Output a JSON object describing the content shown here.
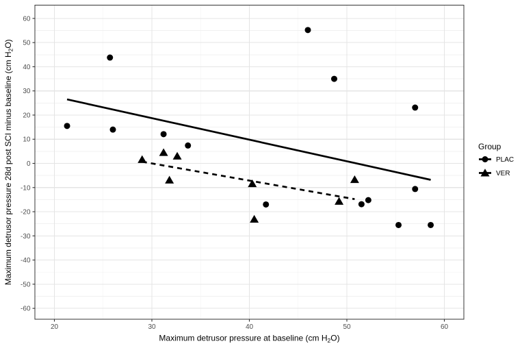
{
  "chart_data": {
    "type": "scatter",
    "title": "",
    "xlabel": "Maximum detrusor pressure at baseline (cm H2O)",
    "ylabel": "Maximum detrusor pressure 28d post SCI minus baseline (cm H2O)",
    "xlabel_parts": [
      "Maximum detrusor pressure at baseline (cm H",
      "2",
      "O)"
    ],
    "ylabel_parts": [
      "Maximum detrusor pressure 28d post SCI minus baseline (cm H",
      "2",
      "O)"
    ],
    "xlim": [
      18,
      62
    ],
    "ylim": [
      -64.5,
      65.5
    ],
    "x_ticks": [
      20,
      30,
      40,
      50,
      60
    ],
    "y_ticks": [
      60,
      50,
      40,
      30,
      20,
      10,
      0,
      -10,
      -20,
      -30,
      -40,
      -50,
      -60
    ],
    "grid": {
      "major": true,
      "minor": true,
      "minor_step": 5
    },
    "legend": {
      "title": "Group",
      "position": "right",
      "entries": [
        {
          "label": "PLAC",
          "marker": "circle"
        },
        {
          "label": "VER",
          "marker": "triangle"
        }
      ]
    },
    "series": [
      {
        "name": "PLAC",
        "marker": "circle",
        "points": [
          [
            21.3,
            15.5
          ],
          [
            25.7,
            43.8
          ],
          [
            26.0,
            14.0
          ],
          [
            31.2,
            12.1
          ],
          [
            33.7,
            7.4
          ],
          [
            41.7,
            -17.0
          ],
          [
            46.0,
            55.2
          ],
          [
            48.7,
            35.0
          ],
          [
            51.5,
            -16.9
          ],
          [
            52.2,
            -15.2
          ],
          [
            55.3,
            -25.5
          ],
          [
            57.0,
            23.1
          ],
          [
            57.0,
            -10.6
          ],
          [
            58.6,
            -25.5
          ]
        ],
        "trend": {
          "line_style": "solid",
          "from": [
            21.3,
            26.5
          ],
          "to": [
            58.6,
            -6.8
          ]
        }
      },
      {
        "name": "VER",
        "marker": "triangle",
        "points": [
          [
            29.0,
            1.6
          ],
          [
            31.2,
            4.5
          ],
          [
            32.6,
            3.0
          ],
          [
            31.8,
            -6.9
          ],
          [
            40.3,
            -8.4
          ],
          [
            40.5,
            -23.1
          ],
          [
            49.2,
            -15.7
          ],
          [
            50.8,
            -6.7
          ]
        ],
        "trend": {
          "line_style": "dashed",
          "from": [
            29.0,
            0.7
          ],
          "to": [
            50.8,
            -14.8
          ]
        }
      }
    ],
    "style": {
      "point_color": "#000000",
      "trend_color": "#000000",
      "panel_border": "#343434",
      "grid_major": "#e4e4e4",
      "grid_minor": "#f1f1f1",
      "tick_color": "#333333",
      "axis_text_color": "#4d4d4d",
      "title_color": "#000000",
      "background": "#ffffff"
    }
  }
}
